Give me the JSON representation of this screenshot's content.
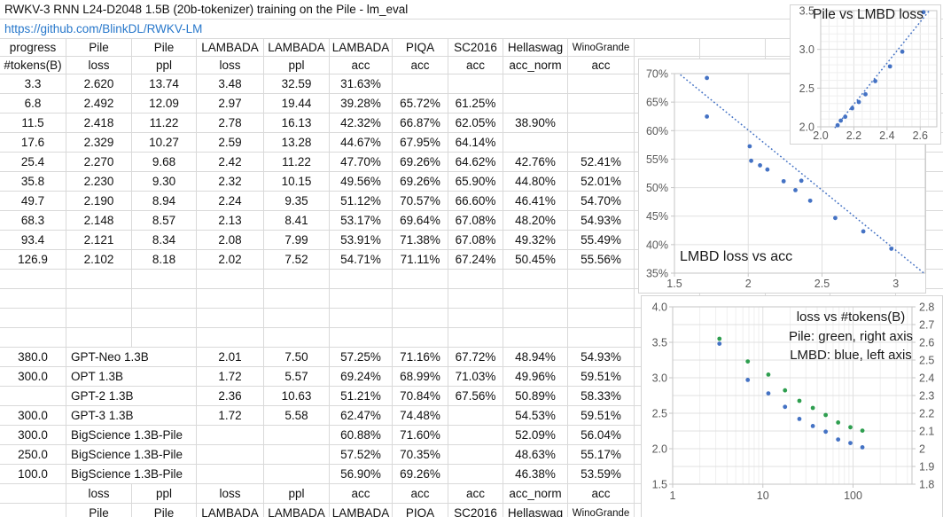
{
  "title": "RWKV-3 RNN L24-D2048 1.5B (20b-tokenizer) training on the Pile - lm_eval",
  "link": "https://github.com/BlinkDL/RWKV-LM",
  "colors": {
    "accent_blue": "#4472C4",
    "accent_green": "#2E9E4F",
    "link_blue": "#2878CB",
    "sheet_gridline": "#D9D9D9"
  },
  "table": {
    "header_row1": [
      "progress",
      "Pile",
      "Pile",
      "LAMBADA",
      "LAMBADA",
      "LAMBADA",
      "PIQA",
      "SC2016",
      "Hellaswag",
      "WinoGrande"
    ],
    "header_row2": [
      "#tokens(B)",
      "loss",
      "ppl",
      "loss",
      "ppl",
      "acc",
      "acc",
      "acc",
      "acc_norm",
      "acc"
    ],
    "rows": [
      [
        "3.3",
        "2.620",
        "13.74",
        "3.48",
        "32.59",
        "31.63%",
        "",
        "",
        "",
        ""
      ],
      [
        "6.8",
        "2.492",
        "12.09",
        "2.97",
        "19.44",
        "39.28%",
        "65.72%",
        "61.25%",
        "",
        ""
      ],
      [
        "11.5",
        "2.418",
        "11.22",
        "2.78",
        "16.13",
        "42.32%",
        "66.87%",
        "62.05%",
        "38.90%",
        ""
      ],
      [
        "17.6",
        "2.329",
        "10.27",
        "2.59",
        "13.28",
        "44.67%",
        "67.95%",
        "64.14%",
        "",
        ""
      ],
      [
        "25.4",
        "2.270",
        "9.68",
        "2.42",
        "11.22",
        "47.70%",
        "69.26%",
        "64.62%",
        "42.76%",
        "52.41%"
      ],
      [
        "35.8",
        "2.230",
        "9.30",
        "2.32",
        "10.15",
        "49.56%",
        "69.26%",
        "65.90%",
        "44.80%",
        "52.01%"
      ],
      [
        "49.7",
        "2.190",
        "8.94",
        "2.24",
        "9.35",
        "51.12%",
        "70.57%",
        "66.60%",
        "46.41%",
        "54.70%"
      ],
      [
        "68.3",
        "2.148",
        "8.57",
        "2.13",
        "8.41",
        "53.17%",
        "69.64%",
        "67.08%",
        "48.20%",
        "54.93%"
      ],
      [
        "93.4",
        "2.121",
        "8.34",
        "2.08",
        "7.99",
        "53.91%",
        "71.38%",
        "67.08%",
        "49.32%",
        "55.49%"
      ],
      [
        "126.9",
        "2.102",
        "8.18",
        "2.02",
        "7.52",
        "54.71%",
        "71.11%",
        "67.24%",
        "50.45%",
        "55.56%"
      ]
    ],
    "comparison_rows": [
      [
        "380.0",
        "GPT-Neo 1.3B",
        "",
        "2.01",
        "7.50",
        "57.25%",
        "71.16%",
        "67.72%",
        "48.94%",
        "54.93%"
      ],
      [
        "300.0",
        "OPT 1.3B",
        "",
        "1.72",
        "5.57",
        "69.24%",
        "68.99%",
        "71.03%",
        "49.96%",
        "59.51%"
      ],
      [
        "",
        "GPT-2 1.3B",
        "",
        "2.36",
        "10.63",
        "51.21%",
        "70.84%",
        "67.56%",
        "50.89%",
        "58.33%"
      ],
      [
        "300.0",
        "GPT-3 1.3B",
        "",
        "1.72",
        "5.58",
        "62.47%",
        "74.48%",
        "",
        "54.53%",
        "59.51%"
      ],
      [
        "300.0",
        "BigScience 1.3B-Pile",
        "",
        "",
        "",
        "60.88%",
        "71.60%",
        "",
        "52.09%",
        "56.04%"
      ],
      [
        "250.0",
        "BigScience 1.3B-Pile",
        "",
        "",
        "",
        "57.52%",
        "70.35%",
        "",
        "48.63%",
        "55.17%"
      ],
      [
        "100.0",
        "BigScience 1.3B-Pile",
        "",
        "",
        "",
        "56.90%",
        "69.26%",
        "",
        "46.38%",
        "53.59%"
      ]
    ],
    "footer_row1": [
      "",
      "loss",
      "ppl",
      "loss",
      "ppl",
      "acc",
      "acc",
      "acc",
      "acc_norm",
      "acc"
    ],
    "footer_row2": [
      "",
      "Pile",
      "Pile",
      "LAMBADA",
      "LAMBADA",
      "LAMBADA",
      "PIQA",
      "SC2016",
      "Hellaswag",
      "WinoGrande"
    ]
  },
  "chart_data": [
    {
      "type": "scatter",
      "title": "Pile vs LMBD loss",
      "legend_position": "title-overlay-top",
      "grid": "major+minor",
      "x": {
        "min": 2.0,
        "max": 2.7,
        "tick_values": [
          2.0,
          2.2,
          2.4,
          2.6
        ],
        "ticks": [
          "2.0",
          "2.2",
          "2.4",
          "2.6"
        ],
        "minor_step": 0.05
      },
      "y": {
        "min": 2.0,
        "max": 3.5,
        "tick_values": [
          2.0,
          2.5,
          3.0,
          3.5
        ],
        "ticks": [
          "2.0",
          "2.5",
          "3.0",
          "3.5"
        ],
        "minor_step": 0.1
      },
      "point_color": "#4472C4",
      "points": [
        [
          2.102,
          2.02
        ],
        [
          2.121,
          2.08
        ],
        [
          2.148,
          2.13
        ],
        [
          2.19,
          2.24
        ],
        [
          2.23,
          2.32
        ],
        [
          2.27,
          2.42
        ],
        [
          2.329,
          2.59
        ],
        [
          2.418,
          2.78
        ],
        [
          2.492,
          2.97
        ],
        [
          2.62,
          3.48
        ]
      ],
      "trend": [
        [
          2.085,
          1.985
        ],
        [
          2.655,
          3.5
        ]
      ]
    },
    {
      "type": "scatter",
      "title": "LMBD loss vs acc",
      "legend_position": "title-inside-bottom-left",
      "grid": "major",
      "x": {
        "min": 1.5,
        "max": 3.2,
        "tick_values": [
          1.5,
          2,
          2.5,
          3
        ],
        "ticks": [
          "1.5",
          "2",
          "2.5",
          "3"
        ]
      },
      "y": {
        "min": 35,
        "max": 70,
        "tick_values": [
          35,
          40,
          45,
          50,
          55,
          60,
          65,
          70
        ],
        "ticks": [
          "35%",
          "40%",
          "45%",
          "50%",
          "55%",
          "60%",
          "65%",
          "70%"
        ]
      },
      "point_color": "#4472C4",
      "points": [
        [
          1.72,
          69.24
        ],
        [
          1.72,
          62.47
        ],
        [
          2.01,
          57.25
        ],
        [
          2.02,
          54.71
        ],
        [
          2.08,
          53.91
        ],
        [
          2.13,
          53.17
        ],
        [
          2.24,
          51.12
        ],
        [
          2.32,
          49.56
        ],
        [
          2.36,
          51.21
        ],
        [
          2.42,
          47.7
        ],
        [
          2.59,
          44.67
        ],
        [
          2.78,
          42.32
        ],
        [
          2.97,
          39.28
        ]
      ],
      "trend": [
        [
          1.54,
          69.8
        ],
        [
          3.2,
          34.8
        ]
      ]
    },
    {
      "type": "scatter",
      "title": "loss vs #tokens(B)",
      "legend_lines": [
        "loss vs #tokens(B)",
        "Pile: green, right axis",
        "LMBD: blue, left axis"
      ],
      "legend_position": "inside-top-right",
      "grid": "major+minor",
      "x": {
        "log": true,
        "min": 1,
        "max": 450,
        "tick_values": [
          1,
          10,
          100
        ],
        "ticks": [
          "1",
          "10",
          "100"
        ]
      },
      "y_left": {
        "min": 1.5,
        "max": 4.0,
        "tick_values": [
          1.5,
          2.0,
          2.5,
          3.0,
          3.5,
          4.0
        ],
        "ticks": [
          "1.5",
          "2.0",
          "2.5",
          "3.0",
          "3.5",
          "4.0"
        ]
      },
      "y_right": {
        "min": 1.8,
        "max": 2.8,
        "tick_values": [
          1.8,
          1.9,
          2.0,
          2.1,
          2.2,
          2.3,
          2.4,
          2.5,
          2.6,
          2.7,
          2.8
        ],
        "ticks": [
          "1.8",
          "1.9",
          "2",
          "2.1",
          "2.2",
          "2.3",
          "2.4",
          "2.5",
          "2.6",
          "2.7",
          "2.8"
        ]
      },
      "x_values": [
        3.3,
        6.8,
        11.5,
        17.6,
        25.4,
        35.8,
        49.7,
        68.3,
        93.4,
        126.9
      ],
      "series": [
        {
          "name": "Pile loss",
          "axis": "right",
          "color": "#2E9E4F",
          "values": [
            2.62,
            2.492,
            2.418,
            2.329,
            2.27,
            2.23,
            2.19,
            2.148,
            2.121,
            2.102
          ]
        },
        {
          "name": "LMBD loss",
          "axis": "left",
          "color": "#4472C4",
          "values": [
            3.48,
            2.97,
            2.78,
            2.59,
            2.42,
            2.32,
            2.24,
            2.13,
            2.08,
            2.02
          ]
        }
      ]
    }
  ]
}
